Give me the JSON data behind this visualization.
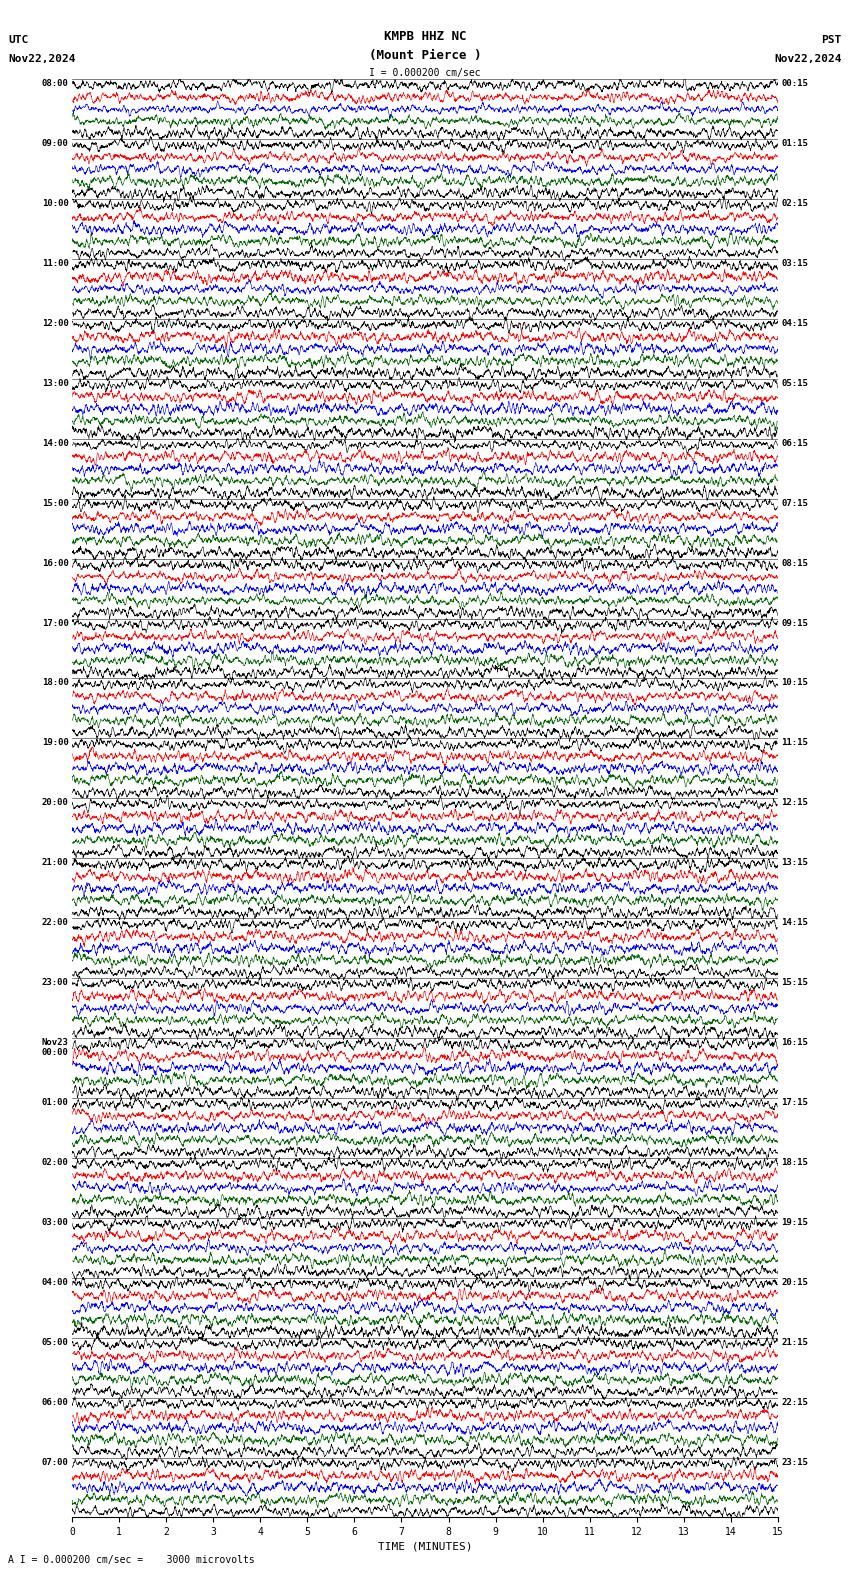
{
  "title_line1": "KMPB HHZ NC",
  "title_line2": "(Mount Pierce )",
  "scale_label": "I = 0.000200 cm/sec",
  "top_left_label1": "UTC",
  "top_left_label2": "Nov22,2024",
  "top_right_label1": "PST",
  "top_right_label2": "Nov22,2024",
  "bottom_note": "A I = 0.000200 cm/sec =    3000 microvolts",
  "xlabel": "TIME (MINUTES)",
  "utc_times": [
    "08:00",
    "09:00",
    "10:00",
    "11:00",
    "12:00",
    "13:00",
    "14:00",
    "15:00",
    "16:00",
    "17:00",
    "18:00",
    "19:00",
    "20:00",
    "21:00",
    "22:00",
    "23:00",
    "Nov23\n00:00",
    "01:00",
    "02:00",
    "03:00",
    "04:00",
    "05:00",
    "06:00",
    "07:00"
  ],
  "pst_times": [
    "00:15",
    "01:15",
    "02:15",
    "03:15",
    "04:15",
    "05:15",
    "06:15",
    "07:15",
    "08:15",
    "09:15",
    "10:15",
    "11:15",
    "12:15",
    "13:15",
    "14:15",
    "15:15",
    "16:15",
    "17:15",
    "18:15",
    "19:15",
    "20:15",
    "21:15",
    "22:15",
    "23:15"
  ],
  "n_rows": 24,
  "n_points": 3000,
  "background_color": "#ffffff",
  "colors": [
    "#000000",
    "#ff0000",
    "#0000ff",
    "#006400",
    "#000000"
  ],
  "fig_width": 8.5,
  "fig_height": 15.84,
  "dpi": 100
}
